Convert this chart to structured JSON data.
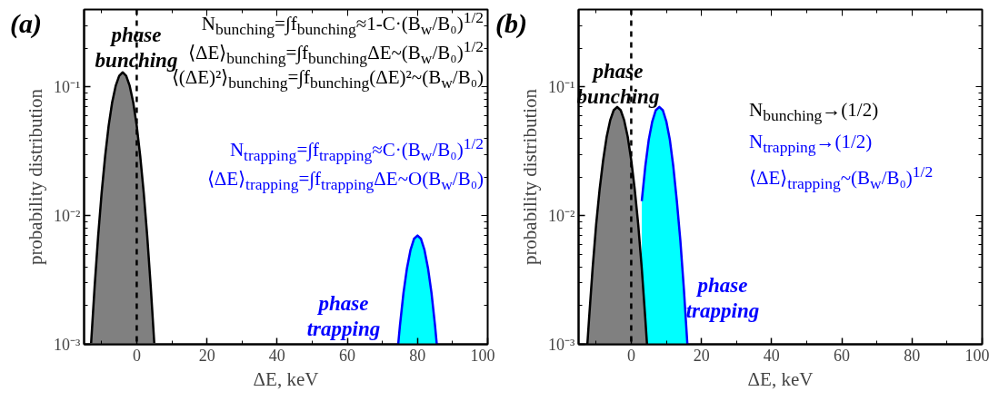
{
  "chart_data": [
    {
      "type": "area",
      "title": "(a)",
      "xlabel": "ΔE, keV",
      "ylabel": "probability distribution",
      "log": true,
      "grid": false,
      "xlim": [
        -15,
        100
      ],
      "ylim": [
        0.001,
        0.4
      ],
      "xticks": [
        0,
        20,
        40,
        60,
        80,
        100,
        {
          "value": -10,
          "label": null
        },
        {
          "value": 10,
          "label": null
        },
        {
          "value": 30,
          "label": null
        },
        {
          "value": 50,
          "label": null
        },
        {
          "value": 70,
          "label": null
        },
        {
          "value": 90,
          "label": null
        }
      ],
      "yticks": [
        {
          "value": 0.001,
          "label": "10⁻³"
        },
        {
          "value": 0.01,
          "label": "10⁻²"
        },
        {
          "value": 0.1,
          "label": "10⁻¹"
        },
        {
          "value": 0.002,
          "label": null
        },
        {
          "value": 0.003,
          "label": null
        },
        {
          "value": 0.004,
          "label": null
        },
        {
          "value": 0.005,
          "label": null
        },
        {
          "value": 0.006,
          "label": null
        },
        {
          "value": 0.007,
          "label": null
        },
        {
          "value": 0.008,
          "label": null
        },
        {
          "value": 0.009,
          "label": null
        },
        {
          "value": 0.02,
          "label": null
        },
        {
          "value": 0.03,
          "label": null
        },
        {
          "value": 0.04,
          "label": null
        },
        {
          "value": 0.05,
          "label": null
        },
        {
          "value": 0.06,
          "label": null
        },
        {
          "value": 0.07,
          "label": null
        },
        {
          "value": 0.08,
          "label": null
        },
        {
          "value": 0.09,
          "label": null
        },
        {
          "value": 0.2,
          "label": null
        },
        {
          "value": 0.3,
          "label": null
        }
      ],
      "series": [
        {
          "name": "phase bunching",
          "color": "#808080",
          "x": [
            -13,
            -12,
            -11,
            -10,
            -9,
            -8,
            -7,
            -6,
            -5,
            -4,
            -3,
            -2,
            -1,
            0,
            1,
            2,
            3,
            4,
            5
          ],
          "values": [
            0.00102,
            0.0028,
            0.0069,
            0.015,
            0.029,
            0.05,
            0.076,
            0.102,
            0.122,
            0.13,
            0.122,
            0.102,
            0.076,
            0.05,
            0.029,
            0.015,
            0.0069,
            0.0028,
            0.00102
          ]
        },
        {
          "name": "phase trapping",
          "color": "#00ffff",
          "x": [
            74.5,
            75,
            76,
            77,
            78,
            79,
            80,
            81,
            82,
            83,
            84,
            85,
            85.5
          ],
          "values": [
            0.001,
            0.0014,
            0.0025,
            0.0039,
            0.0054,
            0.0066,
            0.007,
            0.0066,
            0.0054,
            0.0039,
            0.0025,
            0.0014,
            0.001
          ]
        }
      ],
      "ref_lines": [
        {
          "axis": "x",
          "value": 0,
          "label": null,
          "color": "#000000",
          "line_style": "dashed"
        }
      ],
      "annotations": [
        "N$_{bunching}$=∫f$_{bunching}$≈1-C·(B$_{w}$/B₀)$^{1/2}$",
        "⟨ΔE⟩$_{bunching}$=∫f$_{bunching}$ΔE~(B$_{w}$/B₀)$^{1/2}$",
        "⟨(ΔE)²⟩$_{bunching}$=∫f$_{bunching}$(ΔE)²~(B$_{w}$/B₀)",
        "N$_{trapping}$=∫f$_{trapping}$≈C·(B$_{w}$/B₀)$^{1/2}$",
        "⟨ΔE⟩$_{trapping}$=∫f$_{trapping}$ΔE~O(B$_{w}$/B₀)"
      ]
    },
    {
      "type": "area",
      "title": "(b)",
      "xlabel": "ΔE, keV",
      "ylabel": "probability distribution",
      "log": true,
      "grid": false,
      "xlim": [
        -15,
        100
      ],
      "ylim": [
        0.001,
        0.4
      ],
      "xticks": [
        0,
        20,
        40,
        60,
        80,
        100,
        {
          "value": -10,
          "label": null
        },
        {
          "value": 10,
          "label": null
        },
        {
          "value": 30,
          "label": null
        },
        {
          "value": 50,
          "label": null
        },
        {
          "value": 70,
          "label": null
        },
        {
          "value": 90,
          "label": null
        }
      ],
      "yticks": [
        {
          "value": 0.001,
          "label": "10⁻³"
        },
        {
          "value": 0.01,
          "label": "10⁻²"
        },
        {
          "value": 0.1,
          "label": "10⁻¹"
        },
        {
          "value": 0.002,
          "label": null
        },
        {
          "value": 0.003,
          "label": null
        },
        {
          "value": 0.004,
          "label": null
        },
        {
          "value": 0.005,
          "label": null
        },
        {
          "value": 0.006,
          "label": null
        },
        {
          "value": 0.007,
          "label": null
        },
        {
          "value": 0.008,
          "label": null
        },
        {
          "value": 0.009,
          "label": null
        },
        {
          "value": 0.02,
          "label": null
        },
        {
          "value": 0.03,
          "label": null
        },
        {
          "value": 0.04,
          "label": null
        },
        {
          "value": 0.05,
          "label": null
        },
        {
          "value": 0.06,
          "label": null
        },
        {
          "value": 0.07,
          "label": null
        },
        {
          "value": 0.08,
          "label": null
        },
        {
          "value": 0.09,
          "label": null
        },
        {
          "value": 0.2,
          "label": null
        },
        {
          "value": 0.3,
          "label": null
        }
      ],
      "series": [
        {
          "name": "phase trapping",
          "color": "#00ffff",
          "x": [
            3,
            4,
            5,
            6,
            7,
            8,
            9,
            10,
            11,
            12,
            13,
            14,
            15,
            16
          ],
          "values": [
            0.013,
            0.024,
            0.039,
            0.054,
            0.066,
            0.07,
            0.066,
            0.054,
            0.039,
            0.024,
            0.013,
            0.0064,
            0.0027,
            0.001
          ]
        },
        {
          "name": "phase bunching",
          "color": "#808080",
          "x": [
            -12.5,
            -12,
            -11,
            -10,
            -9,
            -8,
            -7,
            -6,
            -5,
            -4,
            -3,
            -2,
            -1,
            0,
            1,
            2,
            3,
            4,
            4.5
          ],
          "values": [
            0.001,
            0.0016,
            0.0039,
            0.0085,
            0.016,
            0.027,
            0.041,
            0.055,
            0.066,
            0.07,
            0.066,
            0.055,
            0.041,
            0.027,
            0.016,
            0.0085,
            0.0039,
            0.0016,
            0.001
          ]
        }
      ],
      "ref_lines": [
        {
          "axis": "x",
          "value": 0,
          "label": null,
          "color": "#000000",
          "line_style": "dashed"
        }
      ],
      "annotations": [
        "N$_{bunching}$→(1/2)",
        "N$_{trapping}$→(1/2)",
        "⟨ΔE⟩$_{trapping}$~(B$_{w}$/B₀)$^{1/2}$"
      ]
    }
  ]
}
